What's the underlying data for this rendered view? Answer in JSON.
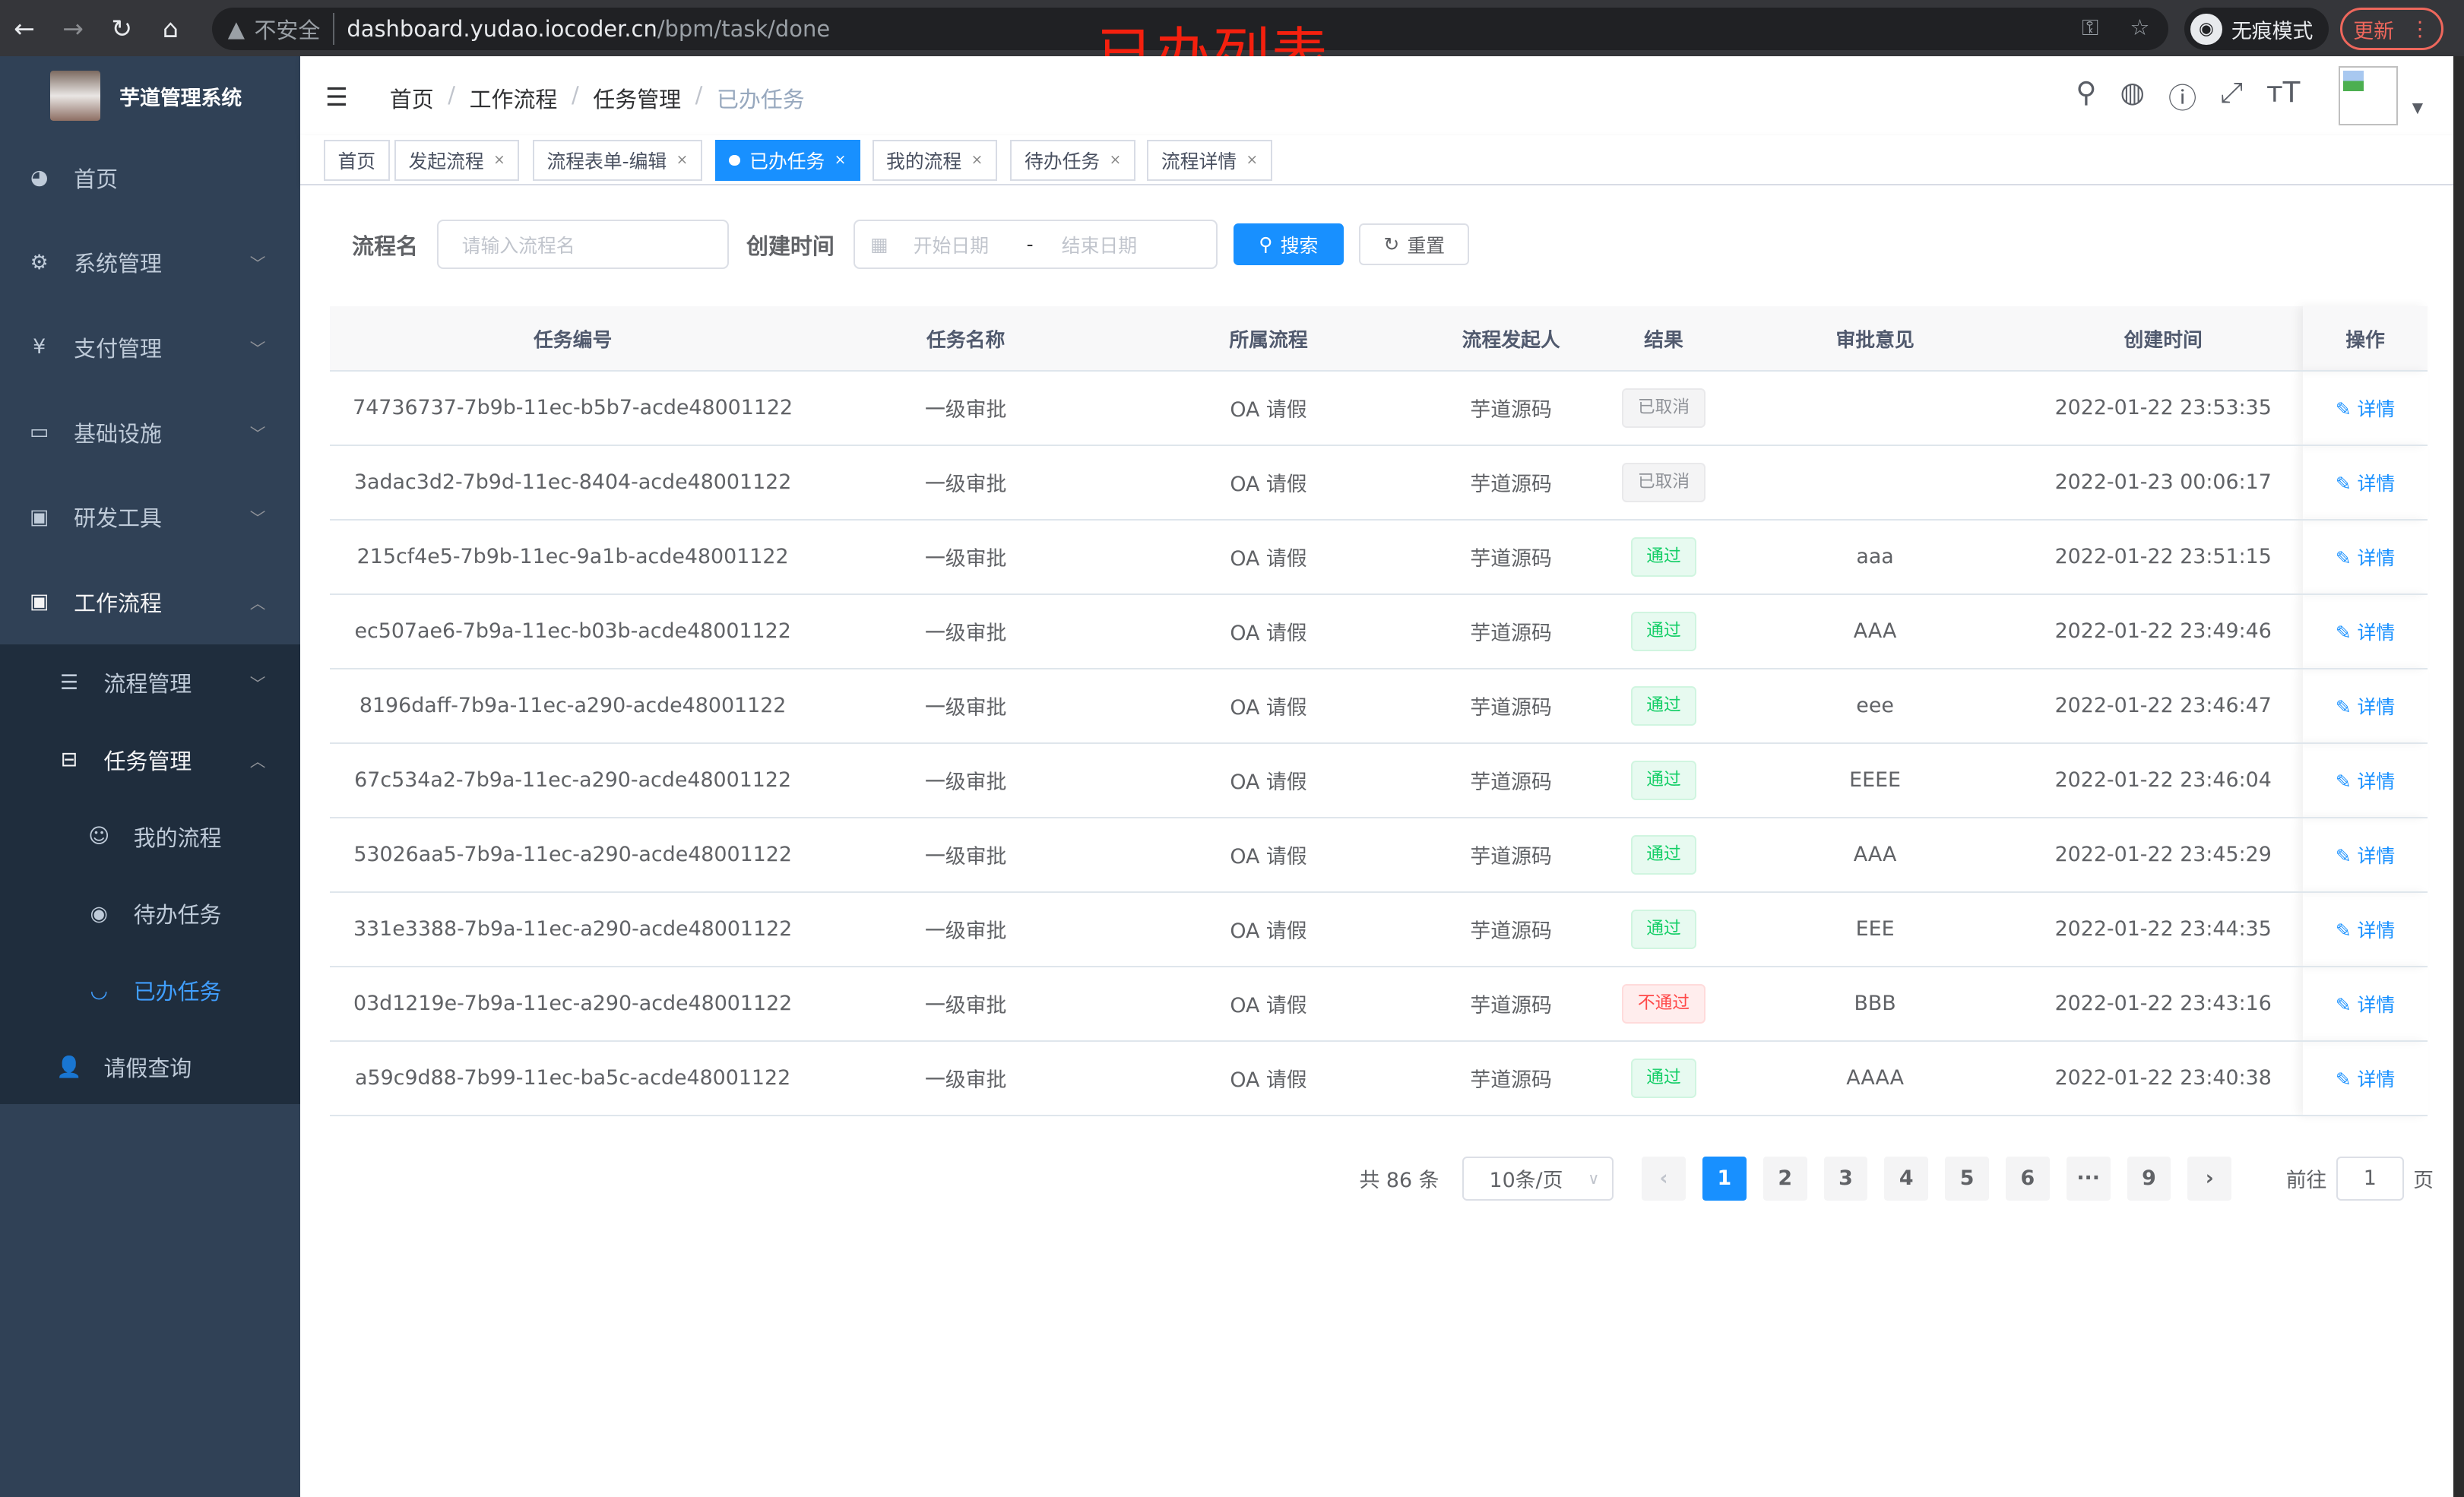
{
  "browser": {
    "url_host": "dashboard.yudao.iocoder.cn",
    "url_path": "/bpm/task/done",
    "insecure": "不安全",
    "incognito": "无痕模式",
    "update": "更新"
  },
  "annotation": "已办列表",
  "sidebar": {
    "title": "芋道管理系统",
    "items": [
      {
        "label": "首页",
        "icon": "dashboard-icon"
      },
      {
        "label": "系统管理",
        "icon": "gear-icon"
      },
      {
        "label": "支付管理",
        "icon": "yen-icon"
      },
      {
        "label": "基础设施",
        "icon": "monitor-icon"
      },
      {
        "label": "研发工具",
        "icon": "toolbox-icon"
      },
      {
        "label": "工作流程",
        "icon": "toolbox-icon"
      }
    ],
    "sub": [
      {
        "label": "流程管理"
      },
      {
        "label": "任务管理"
      }
    ],
    "sub2": [
      {
        "label": "我的流程"
      },
      {
        "label": "待办任务"
      },
      {
        "label": "已办任务"
      }
    ],
    "leave": "请假查询"
  },
  "breadcrumb": [
    "首页",
    "工作流程",
    "任务管理",
    "已办任务"
  ],
  "tags": [
    "首页",
    "发起流程",
    "流程表单-编辑",
    "已办任务",
    "我的流程",
    "待办任务",
    "流程详情"
  ],
  "search": {
    "name_label": "流程名",
    "name_placeholder": "请输入流程名",
    "time_label": "创建时间",
    "start_placeholder": "开始日期",
    "sep": "-",
    "end_placeholder": "结束日期",
    "search": "搜索",
    "reset": "重置"
  },
  "table": {
    "headers": [
      "任务编号",
      "任务名称",
      "所属流程",
      "流程发起人",
      "结果",
      "审批意见",
      "创建时间",
      "操作"
    ],
    "rows": [
      [
        "74736737-7b9b-11ec-b5b7-acde48001122",
        "一级审批",
        "OA 请假",
        "芋道源码",
        "已取消",
        "",
        "2022-01-22 23:53:35",
        "详情"
      ],
      [
        "3adac3d2-7b9d-11ec-8404-acde48001122",
        "一级审批",
        "OA 请假",
        "芋道源码",
        "已取消",
        "",
        "2022-01-23 00:06:17",
        "详情"
      ],
      [
        "215cf4e5-7b9b-11ec-9a1b-acde48001122",
        "一级审批",
        "OA 请假",
        "芋道源码",
        "通过",
        "aaa",
        "2022-01-22 23:51:15",
        "详情"
      ],
      [
        "ec507ae6-7b9a-11ec-b03b-acde48001122",
        "一级审批",
        "OA 请假",
        "芋道源码",
        "通过",
        "AAA",
        "2022-01-22 23:49:46",
        "详情"
      ],
      [
        "8196daff-7b9a-11ec-a290-acde48001122",
        "一级审批",
        "OA 请假",
        "芋道源码",
        "通过",
        "eee",
        "2022-01-22 23:46:47",
        "详情"
      ],
      [
        "67c534a2-7b9a-11ec-a290-acde48001122",
        "一级审批",
        "OA 请假",
        "芋道源码",
        "通过",
        "EEEE",
        "2022-01-22 23:46:04",
        "详情"
      ],
      [
        "53026aa5-7b9a-11ec-a290-acde48001122",
        "一级审批",
        "OA 请假",
        "芋道源码",
        "通过",
        "AAA",
        "2022-01-22 23:45:29",
        "详情"
      ],
      [
        "331e3388-7b9a-11ec-a290-acde48001122",
        "一级审批",
        "OA 请假",
        "芋道源码",
        "通过",
        "EEE",
        "2022-01-22 23:44:35",
        "详情"
      ],
      [
        "03d1219e-7b9a-11ec-a290-acde48001122",
        "一级审批",
        "OA 请假",
        "芋道源码",
        "不通过",
        "BBB",
        "2022-01-22 23:43:16",
        "详情"
      ],
      [
        "a59c9d88-7b99-11ec-ba5c-acde48001122",
        "一级审批",
        "OA 请假",
        "芋道源码",
        "通过",
        "AAAA",
        "2022-01-22 23:40:38",
        "详情"
      ]
    ]
  },
  "pagination": {
    "total": "共 86 条",
    "page_size": "10条/页",
    "pages": [
      "1",
      "2",
      "3",
      "4",
      "5",
      "6",
      "···",
      "9"
    ],
    "current": "1",
    "goto": "前往",
    "goto_value": "1",
    "page_unit": "页"
  },
  "colors": {
    "primary": "#1890ff",
    "sidebar": "#304156",
    "pass": "#13ce66",
    "fail": "#ff4949",
    "annotation": "#f4200e"
  }
}
